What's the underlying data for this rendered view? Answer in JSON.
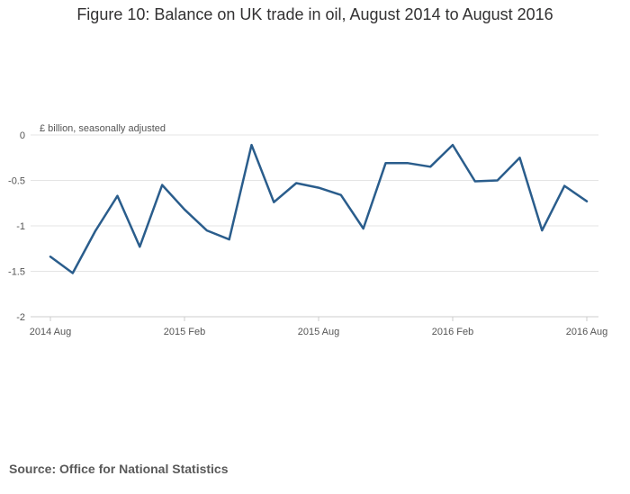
{
  "chart_data": {
    "type": "line",
    "title": "Figure 10: Balance on UK trade in oil, August 2014 to August 2016",
    "ylabel": "£ billion, seasonally adjusted",
    "xlabel": "",
    "ylim": [
      -2,
      0
    ],
    "yticks": [
      0,
      -0.5,
      -1,
      -1.5,
      -2
    ],
    "ytick_labels": [
      "0",
      "-0.5",
      "-1",
      "-1.5",
      "-2"
    ],
    "xticks": [
      {
        "index": 0,
        "label": "2014 Aug"
      },
      {
        "index": 6,
        "label": "2015 Feb"
      },
      {
        "index": 12,
        "label": "2015 Aug"
      },
      {
        "index": 18,
        "label": "2016 Feb"
      },
      {
        "index": 24,
        "label": "2016 Aug"
      }
    ],
    "grid": true,
    "color": "#2a5d8c",
    "x": [
      "2014 Aug",
      "2014 Sep",
      "2014 Oct",
      "2014 Nov",
      "2014 Dec",
      "2015 Jan",
      "2015 Feb",
      "2015 Mar",
      "2015 Apr",
      "2015 May",
      "2015 Jun",
      "2015 Jul",
      "2015 Aug",
      "2015 Sep",
      "2015 Oct",
      "2015 Nov",
      "2015 Dec",
      "2016 Jan",
      "2016 Feb",
      "2016 Mar",
      "2016 Apr",
      "2016 May",
      "2016 Jun",
      "2016 Jul",
      "2016 Aug"
    ],
    "values": [
      -1.34,
      -1.52,
      -1.06,
      -0.67,
      -1.23,
      -0.55,
      -0.82,
      -1.05,
      -1.15,
      -0.11,
      -0.74,
      -0.53,
      -0.58,
      -0.66,
      -1.03,
      -0.31,
      -0.31,
      -0.35,
      -0.11,
      -0.51,
      -0.5,
      -0.25,
      -1.05,
      -0.56,
      -0.73
    ]
  },
  "source": "Source: Office for National Statistics"
}
